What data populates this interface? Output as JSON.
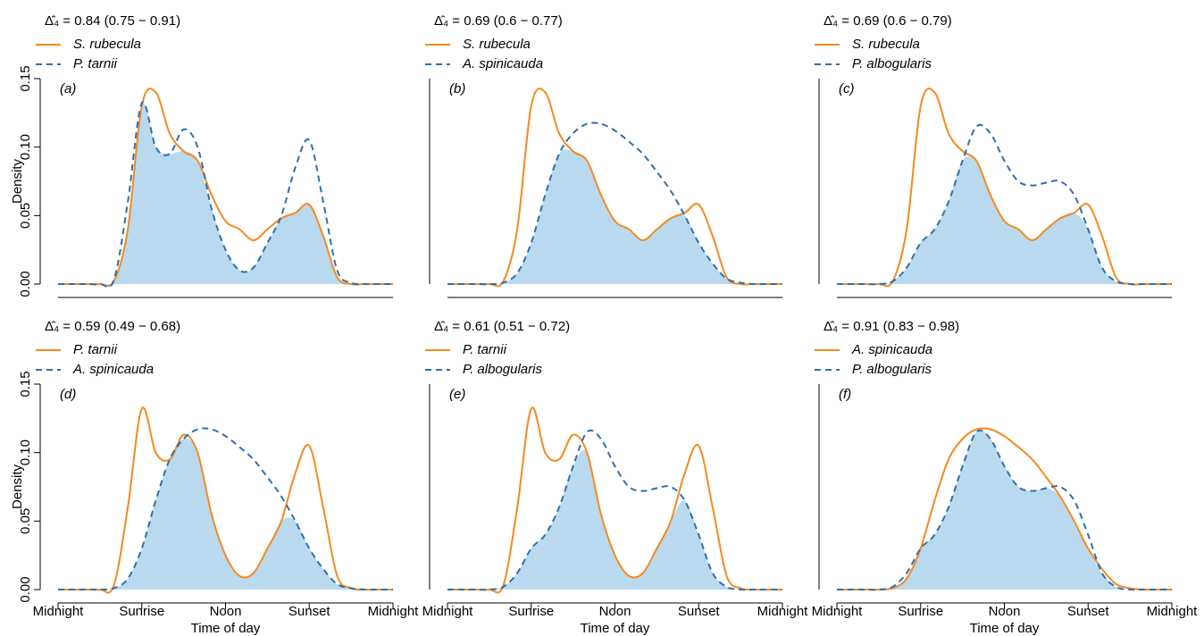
{
  "chart_data": [
    {
      "type": "line",
      "title": "Δ̂₄ = 0.84 (0.75 − 0.91)",
      "panel_label": "(a)",
      "ylabel": "Density",
      "x": [
        0,
        1,
        2,
        3,
        4,
        5,
        6,
        7,
        8,
        9,
        10,
        11,
        12,
        13,
        14,
        15,
        16,
        17,
        18,
        19,
        20,
        21,
        22,
        23,
        24
      ],
      "xlim": [
        0,
        24
      ],
      "ylim": [
        0,
        0.15
      ],
      "yticks": [
        {
          "value": 0,
          "label": "0.00"
        },
        {
          "value": 0.05,
          "label": "0.05"
        },
        {
          "value": 0.1,
          "label": "0.10"
        },
        {
          "value": 0.15,
          "label": "0.15"
        }
      ],
      "overlap_color": "#b9d9ef",
      "series": [
        {
          "name": "S. rubecula",
          "color": "#f5891f",
          "dashed": false,
          "values": [
            0,
            0,
            0,
            0,
            0.002,
            0.04,
            0.13,
            0.14,
            0.11,
            0.097,
            0.09,
            0.065,
            0.046,
            0.04,
            0.032,
            0.04,
            0.048,
            0.052,
            0.058,
            0.035,
            0.005,
            0,
            0,
            0,
            0
          ]
        },
        {
          "name": "P. tarnii",
          "color": "#2e6fad",
          "dashed": true,
          "values": [
            0,
            0,
            0,
            0,
            0.003,
            0.06,
            0.132,
            0.1,
            0.095,
            0.113,
            0.1,
            0.055,
            0.025,
            0.01,
            0.012,
            0.03,
            0.05,
            0.085,
            0.105,
            0.06,
            0.01,
            0.001,
            0,
            0,
            0
          ]
        }
      ]
    },
    {
      "type": "line",
      "title": "Δ̂₄ = 0.69 (0.6 − 0.77)",
      "panel_label": "(b)",
      "x": [
        0,
        1,
        2,
        3,
        4,
        5,
        6,
        7,
        8,
        9,
        10,
        11,
        12,
        13,
        14,
        15,
        16,
        17,
        18,
        19,
        20,
        21,
        22,
        23,
        24
      ],
      "xlim": [
        0,
        24
      ],
      "ylim": [
        0,
        0.15
      ],
      "overlap_color": "#b9d9ef",
      "series": [
        {
          "name": "S. rubecula",
          "color": "#f5891f",
          "dashed": false,
          "values": [
            0,
            0,
            0,
            0,
            0.002,
            0.04,
            0.13,
            0.14,
            0.11,
            0.097,
            0.09,
            0.065,
            0.046,
            0.04,
            0.032,
            0.04,
            0.048,
            0.052,
            0.058,
            0.035,
            0.005,
            0,
            0,
            0,
            0
          ]
        },
        {
          "name": "A. spinicauda",
          "color": "#2e6fad",
          "dashed": true,
          "values": [
            0,
            0,
            0,
            0,
            0.001,
            0.008,
            0.03,
            0.065,
            0.095,
            0.11,
            0.117,
            0.117,
            0.112,
            0.104,
            0.095,
            0.082,
            0.068,
            0.05,
            0.03,
            0.015,
            0.004,
            0.001,
            0,
            0,
            0
          ]
        }
      ]
    },
    {
      "type": "line",
      "title": "Δ̂₄ = 0.69 (0.6 − 0.79)",
      "panel_label": "(c)",
      "x": [
        0,
        1,
        2,
        3,
        4,
        5,
        6,
        7,
        8,
        9,
        10,
        11,
        12,
        13,
        14,
        15,
        16,
        17,
        18,
        19,
        20,
        21,
        22,
        23,
        24
      ],
      "xlim": [
        0,
        24
      ],
      "ylim": [
        0,
        0.15
      ],
      "overlap_color": "#b9d9ef",
      "series": [
        {
          "name": "S. rubecula",
          "color": "#f5891f",
          "dashed": false,
          "values": [
            0,
            0,
            0,
            0,
            0.002,
            0.04,
            0.13,
            0.14,
            0.11,
            0.097,
            0.09,
            0.065,
            0.046,
            0.04,
            0.032,
            0.04,
            0.048,
            0.052,
            0.058,
            0.035,
            0.005,
            0,
            0,
            0,
            0
          ]
        },
        {
          "name": "P. albogularis",
          "color": "#2e6fad",
          "dashed": true,
          "values": [
            0,
            0,
            0,
            0,
            0.002,
            0.012,
            0.03,
            0.04,
            0.06,
            0.09,
            0.115,
            0.11,
            0.09,
            0.075,
            0.072,
            0.074,
            0.075,
            0.065,
            0.04,
            0.012,
            0.002,
            0,
            0,
            0,
            0
          ]
        }
      ]
    },
    {
      "type": "line",
      "title": "Δ̂₄ = 0.59 (0.49 − 0.68)",
      "panel_label": "(d)",
      "ylabel": "Density",
      "xlabel": "Time of day",
      "x": [
        0,
        1,
        2,
        3,
        4,
        5,
        6,
        7,
        8,
        9,
        10,
        11,
        12,
        13,
        14,
        15,
        16,
        17,
        18,
        19,
        20,
        21,
        22,
        23,
        24
      ],
      "xlim": [
        0,
        24
      ],
      "xticks": [
        {
          "value": 0,
          "label": "Midnight"
        },
        {
          "value": 6,
          "label": "Sunrise"
        },
        {
          "value": 12,
          "label": "Noon"
        },
        {
          "value": 18,
          "label": "Sunset"
        },
        {
          "value": 24,
          "label": "Midnight"
        }
      ],
      "ylim": [
        0,
        0.15
      ],
      "yticks": [
        {
          "value": 0,
          "label": "0.00"
        },
        {
          "value": 0.05,
          "label": "0.05"
        },
        {
          "value": 0.1,
          "label": "0.10"
        },
        {
          "value": 0.15,
          "label": "0.15"
        }
      ],
      "overlap_color": "#b9d9ef",
      "series": [
        {
          "name": "P. tarnii",
          "color": "#f5891f",
          "dashed": false,
          "values": [
            0,
            0,
            0,
            0,
            0.003,
            0.06,
            0.132,
            0.1,
            0.095,
            0.113,
            0.1,
            0.055,
            0.025,
            0.01,
            0.012,
            0.03,
            0.05,
            0.085,
            0.105,
            0.06,
            0.01,
            0.001,
            0,
            0,
            0
          ]
        },
        {
          "name": "A. spinicauda",
          "color": "#2e6fad",
          "dashed": true,
          "values": [
            0,
            0,
            0,
            0,
            0.001,
            0.008,
            0.03,
            0.065,
            0.095,
            0.11,
            0.117,
            0.117,
            0.112,
            0.104,
            0.095,
            0.082,
            0.068,
            0.05,
            0.03,
            0.015,
            0.004,
            0.001,
            0,
            0,
            0
          ]
        }
      ]
    },
    {
      "type": "line",
      "title": "Δ̂₄ = 0.61 (0.51 − 0.72)",
      "panel_label": "(e)",
      "xlabel": "Time of day",
      "x": [
        0,
        1,
        2,
        3,
        4,
        5,
        6,
        7,
        8,
        9,
        10,
        11,
        12,
        13,
        14,
        15,
        16,
        17,
        18,
        19,
        20,
        21,
        22,
        23,
        24
      ],
      "xlim": [
        0,
        24
      ],
      "xticks": [
        {
          "value": 0,
          "label": "Midnight"
        },
        {
          "value": 6,
          "label": "Sunrise"
        },
        {
          "value": 12,
          "label": "Noon"
        },
        {
          "value": 18,
          "label": "Sunset"
        },
        {
          "value": 24,
          "label": "Midnight"
        }
      ],
      "ylim": [
        0,
        0.15
      ],
      "overlap_color": "#b9d9ef",
      "series": [
        {
          "name": "P. tarnii",
          "color": "#f5891f",
          "dashed": false,
          "values": [
            0,
            0,
            0,
            0,
            0.003,
            0.06,
            0.132,
            0.1,
            0.095,
            0.113,
            0.1,
            0.055,
            0.025,
            0.01,
            0.012,
            0.03,
            0.05,
            0.085,
            0.105,
            0.06,
            0.01,
            0.001,
            0,
            0,
            0
          ]
        },
        {
          "name": "P. albogularis",
          "color": "#2e6fad",
          "dashed": true,
          "values": [
            0,
            0,
            0,
            0,
            0.002,
            0.012,
            0.03,
            0.04,
            0.06,
            0.09,
            0.115,
            0.11,
            0.09,
            0.075,
            0.072,
            0.074,
            0.075,
            0.065,
            0.04,
            0.012,
            0.002,
            0,
            0,
            0,
            0
          ]
        }
      ]
    },
    {
      "type": "line",
      "title": "Δ̂₄ = 0.91 (0.83 − 0.98)",
      "panel_label": "(f)",
      "xlabel": "Time of day",
      "x": [
        0,
        1,
        2,
        3,
        4,
        5,
        6,
        7,
        8,
        9,
        10,
        11,
        12,
        13,
        14,
        15,
        16,
        17,
        18,
        19,
        20,
        21,
        22,
        23,
        24
      ],
      "xlim": [
        0,
        24
      ],
      "xticks": [
        {
          "value": 0,
          "label": "Midnight"
        },
        {
          "value": 6,
          "label": "Sunrise"
        },
        {
          "value": 12,
          "label": "Noon"
        },
        {
          "value": 18,
          "label": "Sunset"
        },
        {
          "value": 24,
          "label": "Midnight"
        }
      ],
      "ylim": [
        0,
        0.15
      ],
      "overlap_color": "#b9d9ef",
      "series": [
        {
          "name": "A. spinicauda",
          "color": "#f5891f",
          "dashed": false,
          "values": [
            0,
            0,
            0,
            0,
            0.001,
            0.008,
            0.03,
            0.065,
            0.095,
            0.11,
            0.117,
            0.117,
            0.112,
            0.104,
            0.095,
            0.082,
            0.068,
            0.05,
            0.03,
            0.015,
            0.004,
            0.001,
            0,
            0,
            0
          ]
        },
        {
          "name": "P. albogularis",
          "color": "#2e6fad",
          "dashed": true,
          "values": [
            0,
            0,
            0,
            0,
            0.002,
            0.012,
            0.03,
            0.04,
            0.06,
            0.09,
            0.115,
            0.11,
            0.09,
            0.075,
            0.072,
            0.074,
            0.075,
            0.065,
            0.04,
            0.012,
            0.002,
            0,
            0,
            0,
            0
          ]
        }
      ]
    }
  ]
}
